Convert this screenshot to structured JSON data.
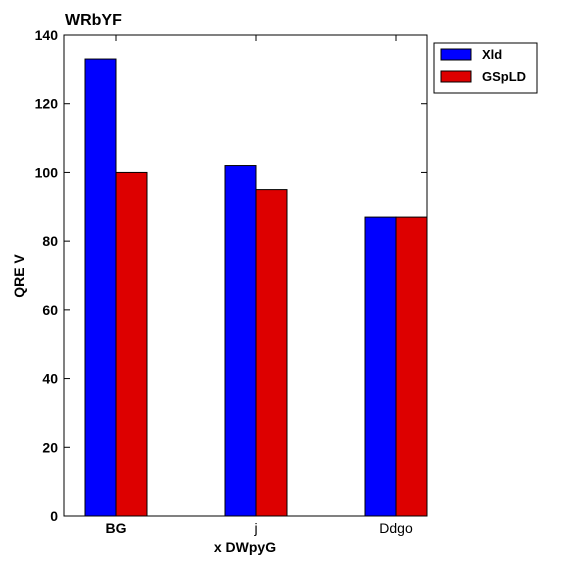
{
  "chart_data": {
    "type": "bar",
    "title": "WRbYF",
    "xlabel": "x DWpyG",
    "ylabel": "QRE V",
    "categories": [
      "BG",
      "j",
      "Ddgo"
    ],
    "series": [
      {
        "name": "Xld",
        "color": "#0000ff",
        "values": [
          133,
          102,
          87
        ]
      },
      {
        "name": "GSpLD",
        "color": "#dd0000",
        "values": [
          100,
          95,
          87
        ]
      }
    ],
    "ylim": [
      0,
      140
    ],
    "yticks": [
      0,
      20,
      40,
      60,
      80,
      100,
      120,
      140
    ],
    "grid": false,
    "legend_position": "top-right"
  }
}
